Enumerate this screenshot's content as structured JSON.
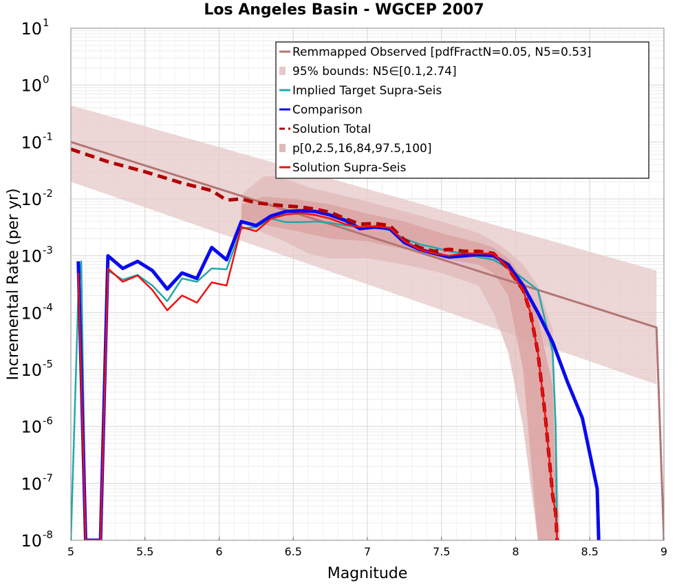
{
  "chart_data": {
    "type": "line",
    "title": "Los Angeles Basin - WGCEP 2007",
    "xlabel": "Magnitude",
    "ylabel": "Incremental Rate (per yr)",
    "xlim": [
      5,
      9
    ],
    "ylim": [
      1e-08,
      10
    ],
    "yscale": "log",
    "grid": true,
    "legend_position": "top-right",
    "x_ticks": [
      "5",
      "5.5",
      "6",
      "6.5",
      "7",
      "7.5",
      "8",
      "8.5",
      "9"
    ],
    "y_tick_exponents": [
      "-8",
      "-7",
      "-6",
      "-5",
      "-4",
      "-3",
      "-2",
      "-1",
      "0",
      "1"
    ],
    "y_tick_base": "10",
    "bands": [
      {
        "name": "95% bounds: N5∈[0.1,2.74]",
        "color": "#e6c8c8",
        "x": [
          5.0,
          8.95
        ],
        "y_low": [
          0.02,
          5.5e-06
        ],
        "y_high": [
          0.44,
          0.00055
        ]
      },
      {
        "name": "p[0,2.5,16,84,97.5,100]",
        "color": "#e2b9b9",
        "x": [
          6.15,
          6.3,
          6.4,
          6.5,
          6.6,
          6.75,
          7.0,
          7.25,
          7.5,
          7.75,
          7.85,
          7.95,
          8.05,
          8.15,
          8.25,
          8.3
        ],
        "y_low": [
          0.004,
          0.0025,
          0.002,
          0.0015,
          0.0011,
          0.0009,
          0.0009,
          0.0007,
          0.0005,
          0.0003,
          0.0001,
          2e-05,
          1e-06,
          1e-08,
          1e-08,
          1e-08
        ],
        "y_high": [
          0.012,
          0.025,
          0.025,
          0.02,
          0.016,
          0.013,
          0.009,
          0.006,
          0.004,
          0.0025,
          0.0018,
          0.0012,
          0.0007,
          0.0003,
          5e-05,
          1e-08
        ]
      },
      {
        "name": "",
        "color": "#d99f9f",
        "x": [
          6.15,
          6.3,
          6.5,
          6.75,
          7.0,
          7.25,
          7.5,
          7.75,
          7.85,
          7.95,
          8.05,
          8.15,
          8.25,
          8.28
        ],
        "y_low": [
          0.0045,
          0.0035,
          0.0028,
          0.002,
          0.0018,
          0.0013,
          0.0009,
          0.0007,
          0.0005,
          0.0002,
          1e-05,
          1e-08,
          1e-08,
          1e-08
        ],
        "y_high": [
          0.008,
          0.011,
          0.01,
          0.008,
          0.0055,
          0.004,
          0.0025,
          0.0017,
          0.0014,
          0.0009,
          0.0004,
          8e-05,
          5e-06,
          1e-08
        ]
      }
    ],
    "series": [
      {
        "name": "Remmapped Observed [pdfFractN=0.05, N5=0.53]",
        "color": "#b47474",
        "width": 3,
        "dash": "",
        "x": [
          5.0,
          8.95,
          9.0
        ],
        "y": [
          0.1,
          5.5e-05,
          1e-08
        ]
      },
      {
        "name": "Implied Target Supra-Seis",
        "color": "#20a8a8",
        "width": 2.5,
        "dash": "",
        "x": [
          5.0,
          5.05,
          5.07,
          5.1,
          5.2,
          5.25,
          5.35,
          5.45,
          5.55,
          5.65,
          5.75,
          5.85,
          5.95,
          6.05,
          6.15,
          6.25,
          6.35,
          6.45,
          6.55,
          6.65,
          6.75,
          6.85,
          6.95,
          7.05,
          7.15,
          7.25,
          7.35,
          7.45,
          7.55,
          7.65,
          7.75,
          7.85,
          7.95,
          8.05,
          8.15,
          8.25,
          8.27,
          8.28
        ],
        "y": [
          1e-08,
          0.0002,
          0.0008,
          1e-08,
          1e-08,
          0.00055,
          0.00038,
          0.00046,
          0.0003,
          0.00016,
          0.0004,
          0.00035,
          0.0006,
          0.00058,
          0.003,
          0.0032,
          0.0045,
          0.0039,
          0.0039,
          0.004,
          0.0038,
          0.0034,
          0.0032,
          0.0033,
          0.0028,
          0.002,
          0.0016,
          0.0014,
          0.0012,
          0.0011,
          0.00095,
          0.00085,
          0.0006,
          0.0004,
          0.00025,
          2e-05,
          1e-06,
          1e-08
        ]
      },
      {
        "name": "Comparison",
        "color": "#0a0aee",
        "width": 5,
        "dash": "",
        "x": [
          5.05,
          5.1,
          5.2,
          5.25,
          5.35,
          5.45,
          5.55,
          5.65,
          5.75,
          5.85,
          5.95,
          6.05,
          6.15,
          6.25,
          6.35,
          6.45,
          6.55,
          6.65,
          6.75,
          6.85,
          6.95,
          7.05,
          7.15,
          7.25,
          7.35,
          7.45,
          7.55,
          7.65,
          7.75,
          7.85,
          7.95,
          8.05,
          8.15,
          8.25,
          8.35,
          8.45,
          8.55,
          8.56
        ],
        "y": [
          0.0008,
          1e-08,
          1e-08,
          0.001,
          0.0006,
          0.0008,
          0.00055,
          0.00026,
          0.0005,
          0.0004,
          0.0014,
          0.00085,
          0.004,
          0.0034,
          0.005,
          0.006,
          0.0062,
          0.006,
          0.0052,
          0.0042,
          0.003,
          0.0032,
          0.003,
          0.0017,
          0.0013,
          0.0011,
          0.00095,
          0.001,
          0.00105,
          0.001,
          0.0007,
          0.0003,
          0.0001,
          3e-05,
          6e-06,
          1.4e-06,
          8e-08,
          1e-08
        ]
      },
      {
        "name": "Solution Total",
        "color": "#b00000",
        "width": 5,
        "dash": "14,8",
        "x": [
          5.0,
          5.25,
          5.5,
          5.75,
          5.95,
          6.05,
          6.15,
          6.25,
          6.35,
          6.45,
          6.55,
          6.65,
          6.75,
          6.85,
          6.95,
          7.05,
          7.15,
          7.25,
          7.35,
          7.45,
          7.55,
          7.65,
          7.75,
          7.85,
          7.95,
          8.05,
          8.1,
          8.15,
          8.2,
          8.25,
          8.27,
          8.28
        ],
        "y": [
          0.075,
          0.045,
          0.03,
          0.019,
          0.014,
          0.0095,
          0.01,
          0.0085,
          0.008,
          0.0075,
          0.0072,
          0.0066,
          0.0058,
          0.0045,
          0.0036,
          0.0037,
          0.0034,
          0.0019,
          0.0014,
          0.0012,
          0.0013,
          0.0012,
          0.0012,
          0.0011,
          0.0006,
          0.00025,
          0.0001,
          2e-05,
          1.5e-06,
          6e-08,
          3e-08,
          1e-08
        ]
      },
      {
        "name": "Solution Supra-Seis",
        "color": "#ee1111",
        "width": 2.5,
        "dash": "",
        "x": [
          5.05,
          5.1,
          5.2,
          5.25,
          5.35,
          5.45,
          5.55,
          5.65,
          5.75,
          5.85,
          5.95,
          6.05,
          6.15,
          6.25,
          6.35,
          6.45,
          6.55,
          6.65,
          6.75,
          6.85,
          6.95,
          7.05,
          7.15,
          7.25,
          7.35,
          7.45,
          7.55,
          7.65,
          7.75,
          7.85,
          7.95,
          8.05,
          8.1,
          8.15,
          8.2,
          8.25,
          8.27,
          8.28
        ],
        "y": [
          0.0005,
          1e-08,
          1e-08,
          0.0006,
          0.00035,
          0.00045,
          0.00025,
          0.00011,
          0.0002,
          0.00015,
          0.00034,
          0.0003,
          0.0032,
          0.0027,
          0.0045,
          0.0053,
          0.0056,
          0.0052,
          0.0045,
          0.0036,
          0.0032,
          0.0033,
          0.0031,
          0.0018,
          0.0013,
          0.0011,
          0.001,
          0.0011,
          0.0011,
          0.0011,
          0.0006,
          0.00025,
          0.0001,
          2e-05,
          1.5e-06,
          6e-08,
          3e-08,
          1e-08
        ]
      }
    ],
    "legend": [
      {
        "label": "Remmapped Observed [pdfFractN=0.05, N5=0.53]",
        "kind": "line",
        "color": "#b47474",
        "dash": ""
      },
      {
        "label": "95% bounds: N5∈[0.1,2.74]",
        "kind": "patch",
        "color": "#e6c8c8",
        "dash": ""
      },
      {
        "label": "Implied Target Supra-Seis",
        "kind": "line",
        "color": "#20a8a8",
        "dash": ""
      },
      {
        "label": "Comparison",
        "kind": "line",
        "color": "#0a0aee",
        "dash": ""
      },
      {
        "label": "Solution Total",
        "kind": "line",
        "color": "#b00000",
        "dash": "8,5"
      },
      {
        "label": "p[0,2.5,16,84,97.5,100]",
        "kind": "patch",
        "color": "#e2b9b9",
        "dash": ""
      },
      {
        "label": "Solution Supra-Seis",
        "kind": "line",
        "color": "#ee1111",
        "dash": ""
      }
    ]
  }
}
